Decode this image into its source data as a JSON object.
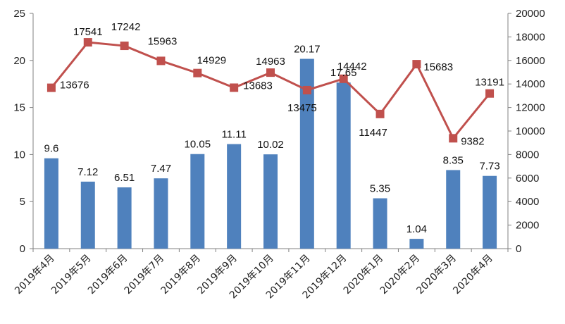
{
  "chart_data": {
    "type": "bar",
    "categories": [
      "2019年4月",
      "2019年5月",
      "2019年6月",
      "2019年7月",
      "2019年8月",
      "2019年9月",
      "2019年10月",
      "2019年11月",
      "2019年12月",
      "2020年1月",
      "2020年2月",
      "2020年3月",
      "2020年4月"
    ],
    "series": [
      {
        "type": "bar",
        "axis": "left",
        "color": "#4f81bd",
        "values": [
          9.6,
          7.12,
          6.51,
          7.47,
          10.05,
          11.11,
          10.02,
          20.17,
          17.65,
          5.35,
          1.04,
          8.35,
          7.73
        ],
        "labels": [
          "9.6",
          "7.12",
          "6.51",
          "7.47",
          "10.05",
          "11.11",
          "10.02",
          "20.17",
          "17.65",
          "5.35",
          "1.04",
          "8.35",
          "7.73"
        ]
      },
      {
        "type": "line",
        "axis": "right",
        "color": "#c0504d",
        "marker": "square",
        "values": [
          13676,
          17541,
          17242,
          15963,
          14929,
          13683,
          14963,
          13475,
          14442,
          11447,
          15683,
          9382,
          13191
        ],
        "labels": [
          "13676",
          "17541",
          "17242",
          "15963",
          "14929",
          "13683",
          "14963",
          "13475",
          "14442",
          "11447",
          "15683",
          "9382",
          "13191"
        ]
      }
    ],
    "left_axis": {
      "range": [
        0,
        25
      ],
      "ticks": [
        0,
        5,
        10,
        15,
        20,
        25
      ],
      "tick_labels": [
        "0",
        "5",
        "10",
        "15",
        "20",
        "25"
      ]
    },
    "right_axis": {
      "range": [
        0,
        20000
      ],
      "ticks": [
        0,
        2000,
        4000,
        6000,
        8000,
        10000,
        12000,
        14000,
        16000,
        18000,
        20000
      ],
      "tick_labels": [
        "0",
        "2000",
        "4000",
        "6000",
        "8000",
        "10000",
        "12000",
        "14000",
        "16000",
        "18000",
        "20000"
      ]
    },
    "grid": false,
    "legend": "none",
    "title": "",
    "xlabel": "",
    "ylabel": "",
    "y2label": ""
  }
}
